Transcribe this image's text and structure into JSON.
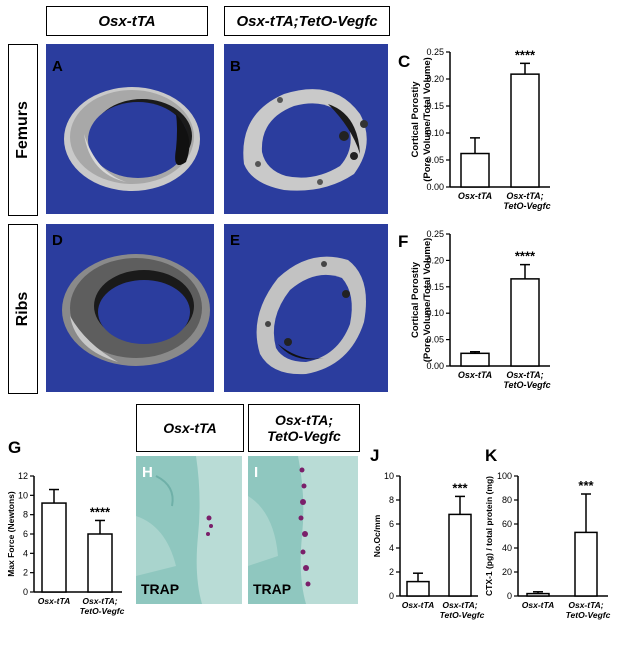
{
  "headers": {
    "col_left": "Osx-tTA",
    "col_right": "Osx-tTA;TetO-Vegfc",
    "row_top": "Femurs",
    "row_bottom": "Ribs"
  },
  "panel_labels": {
    "A": "A",
    "B": "B",
    "C": "C",
    "D": "D",
    "E": "E",
    "F": "F",
    "G": "G",
    "H": "H",
    "I": "I",
    "J": "J",
    "K": "K"
  },
  "histology": {
    "header_left": "Osx-tTA",
    "header_right_line1": "Osx-tTA;",
    "header_right_line2": "TetO-Vegfc",
    "stain_left": "TRAP",
    "stain_right": "TRAP"
  },
  "colors": {
    "microct_background": "#2b3d9e",
    "bone": "#c8c8c8",
    "histology_background": "#8fc7bf",
    "trap_stain": "#7a1f6a"
  },
  "chart_data": [
    {
      "id": "C",
      "type": "bar",
      "categories": [
        "Osx-tTA",
        "Osx-tTA;\nTetO-Vegfc"
      ],
      "cat_line1": [
        "Osx-tTA",
        "Osx-tTA;"
      ],
      "cat_line2": [
        "",
        "TetO-Vegfc"
      ],
      "values": [
        0.062,
        0.209
      ],
      "errors": [
        0.029,
        0.02
      ],
      "significance": [
        "",
        "****"
      ],
      "ylabel_line1": "Cortical Porostiy",
      "ylabel_line2": "(Pore Volume/Total Volume)",
      "ylim": [
        0,
        0.25
      ],
      "yticks": [
        0.0,
        0.05,
        0.1,
        0.15,
        0.2,
        0.25
      ],
      "ytick_labels": [
        "0.00",
        "0.05",
        "0.10",
        "0.15",
        "0.20",
        "0.25"
      ]
    },
    {
      "id": "F",
      "type": "bar",
      "categories": [
        "Osx-tTA",
        "Osx-tTA;\nTetO-Vegfc"
      ],
      "cat_line1": [
        "Osx-tTA",
        "Osx-tTA;"
      ],
      "cat_line2": [
        "",
        "TetO-Vegfc"
      ],
      "values": [
        0.024,
        0.165
      ],
      "errors": [
        0.003,
        0.027
      ],
      "significance": [
        "",
        "****"
      ],
      "ylabel_line1": "Cortical Porostiy",
      "ylabel_line2": "(Pore Volume/Total Volume)",
      "ylim": [
        0,
        0.25
      ],
      "yticks": [
        0.0,
        0.05,
        0.1,
        0.15,
        0.2,
        0.25
      ],
      "ytick_labels": [
        "0.00",
        "0.05",
        "0.10",
        "0.15",
        "0.20",
        "0.25"
      ]
    },
    {
      "id": "G",
      "type": "bar",
      "categories": [
        "Osx-tTA",
        "Osx-tTA;\nTetO-Vegfc"
      ],
      "cat_line1": [
        "Osx-tTA",
        "Osx-tTA;"
      ],
      "cat_line2": [
        "",
        "TetO-Vegfc"
      ],
      "values": [
        9.2,
        6.0
      ],
      "errors": [
        1.4,
        1.4
      ],
      "significance": [
        "",
        "****"
      ],
      "ylabel_line1": "Max Force (Newtons)",
      "ylabel_line2": "",
      "ylim": [
        0,
        12
      ],
      "yticks": [
        0,
        2,
        4,
        6,
        8,
        10,
        12
      ],
      "ytick_labels": [
        "0",
        "2",
        "4",
        "6",
        "8",
        "10",
        "12"
      ]
    },
    {
      "id": "J",
      "type": "bar",
      "categories": [
        "Osx-tTA",
        "Osx-tTA;\nTetO-Vegfc"
      ],
      "cat_line1": [
        "Osx-tTA",
        "Osx-tTA;"
      ],
      "cat_line2": [
        "",
        "TetO-Vegfc"
      ],
      "values": [
        1.2,
        6.8
      ],
      "errors": [
        0.7,
        1.5
      ],
      "significance": [
        "",
        "***"
      ],
      "ylabel_line1": "No.Oc/mm",
      "ylabel_line2": "",
      "ylim": [
        0,
        10
      ],
      "yticks": [
        0,
        2,
        4,
        6,
        8,
        10
      ],
      "ytick_labels": [
        "0",
        "2",
        "4",
        "6",
        "8",
        "10"
      ]
    },
    {
      "id": "K",
      "type": "bar",
      "categories": [
        "Osx-tTA",
        "Osx-tTA;\nTetO-Vegfc"
      ],
      "cat_line1": [
        "Osx-tTA",
        "Osx-tTA;"
      ],
      "cat_line2": [
        "",
        "TetO-Vegfc"
      ],
      "values": [
        2.0,
        53.0
      ],
      "errors": [
        1.5,
        32.0
      ],
      "significance": [
        "",
        "***"
      ],
      "ylabel_line1": "CTX-1 (pg) / total protein (mg)",
      "ylabel_line2": "",
      "ylim": [
        0,
        100
      ],
      "yticks": [
        0,
        20,
        40,
        60,
        80,
        100
      ],
      "ytick_labels": [
        "0",
        "20",
        "40",
        "60",
        "80",
        "100"
      ]
    }
  ]
}
